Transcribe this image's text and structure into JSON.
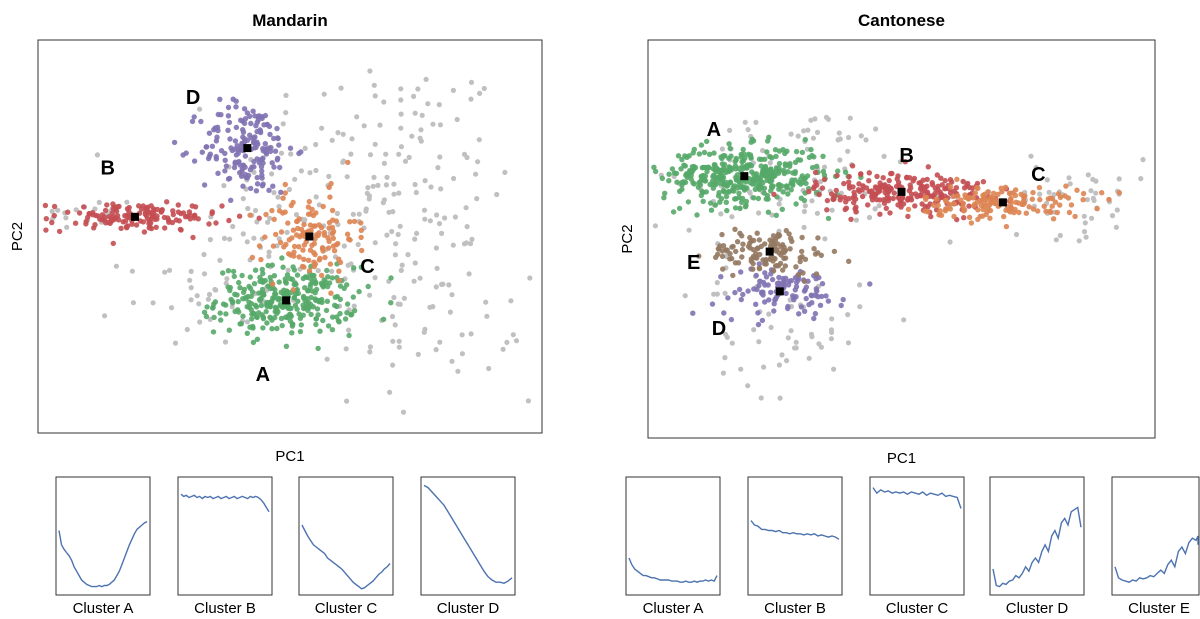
{
  "colors": {
    "A": "#55a868",
    "B": "#c44e52",
    "C": "#dd8452",
    "D": "#8172b3",
    "E": "#937860",
    "background": "#c0c0c0",
    "centroid": "#000000",
    "contour": "#4c72b0"
  },
  "chart_data": [
    {
      "type": "scatter",
      "title": "Mandarin",
      "xlabel": "PC1",
      "ylabel": "PC2",
      "grid": false,
      "clusters": [
        {
          "label": "A",
          "cx": 0.2,
          "cy": -0.65,
          "sx": 0.45,
          "sy": 0.17,
          "n": 300,
          "label_x": -0.1,
          "label_y": -1.4
        },
        {
          "label": "B",
          "cx": -1.75,
          "cy": 0.2,
          "sx": 0.55,
          "sy": 0.07,
          "n": 150,
          "label_x": -2.1,
          "label_y": 0.7
        },
        {
          "label": "C",
          "cx": 0.5,
          "cy": 0.0,
          "sx": 0.3,
          "sy": 0.22,
          "n": 130,
          "label_x": 1.25,
          "label_y": -0.3
        },
        {
          "label": "D",
          "cx": -0.3,
          "cy": 0.9,
          "sx": 0.3,
          "sy": 0.24,
          "n": 170,
          "label_x": -1.0,
          "label_y": 1.42
        }
      ],
      "xlim": [
        -3,
        3.5
      ],
      "ylim": [
        -2.0,
        2.0
      ]
    },
    {
      "type": "scatter",
      "title": "Cantonese",
      "xlabel": "PC1",
      "ylabel": "PC2",
      "grid": false,
      "clusters": [
        {
          "label": "A",
          "cx": -1.55,
          "cy": 0.6,
          "sx": 0.4,
          "sy": 0.14,
          "n": 380,
          "label_x": -1.85,
          "label_y": 1.05
        },
        {
          "label": "B",
          "cx": 0.0,
          "cy": 0.45,
          "sx": 0.42,
          "sy": 0.1,
          "n": 230,
          "label_x": 0.05,
          "label_y": 0.8
        },
        {
          "label": "C",
          "cx": 1.0,
          "cy": 0.35,
          "sx": 0.4,
          "sy": 0.08,
          "n": 150,
          "label_x": 1.35,
          "label_y": 0.62
        },
        {
          "label": "D",
          "cx": -1.2,
          "cy": -0.5,
          "sx": 0.32,
          "sy": 0.12,
          "n": 110,
          "label_x": -1.8,
          "label_y": -0.85
        },
        {
          "label": "E",
          "cx": -1.3,
          "cy": -0.12,
          "sx": 0.3,
          "sy": 0.11,
          "n": 120,
          "label_x": -2.05,
          "label_y": -0.22
        }
      ],
      "xlim": [
        -2.5,
        2.5
      ],
      "ylim": [
        -1.9,
        1.9
      ]
    }
  ],
  "contours": {
    "mandarin": [
      {
        "label": "Cluster A",
        "values": [
          0.55,
          0.42,
          0.38,
          0.35,
          0.32,
          0.28,
          0.22,
          0.18,
          0.14,
          0.1,
          0.08,
          0.06,
          0.05,
          0.04,
          0.04,
          0.04,
          0.05,
          0.04,
          0.05,
          0.05,
          0.06,
          0.08,
          0.1,
          0.14,
          0.18,
          0.24,
          0.3,
          0.36,
          0.42,
          0.47,
          0.52,
          0.56,
          0.58,
          0.6,
          0.62,
          0.63
        ]
      },
      {
        "label": "Cluster B",
        "values": [
          0.88,
          0.86,
          0.87,
          0.85,
          0.86,
          0.87,
          0.85,
          0.86,
          0.84,
          0.86,
          0.85,
          0.86,
          0.84,
          0.85,
          0.86,
          0.84,
          0.85,
          0.86,
          0.84,
          0.85,
          0.86,
          0.84,
          0.85,
          0.86,
          0.85,
          0.84,
          0.86,
          0.85,
          0.86,
          0.85,
          0.83,
          0.8,
          0.76,
          0.72
        ]
      },
      {
        "label": "Cluster C",
        "values": [
          0.6,
          0.55,
          0.5,
          0.46,
          0.42,
          0.4,
          0.38,
          0.36,
          0.34,
          0.3,
          0.28,
          0.26,
          0.24,
          0.22,
          0.2,
          0.17,
          0.14,
          0.11,
          0.08,
          0.06,
          0.04,
          0.02,
          0.03,
          0.05,
          0.07,
          0.09,
          0.12,
          0.15,
          0.17,
          0.2,
          0.22,
          0.25
        ]
      },
      {
        "label": "Cluster D",
        "values": [
          0.96,
          0.94,
          0.9,
          0.86,
          0.82,
          0.78,
          0.72,
          0.66,
          0.6,
          0.54,
          0.48,
          0.42,
          0.36,
          0.3,
          0.24,
          0.18,
          0.13,
          0.1,
          0.08,
          0.08,
          0.07,
          0.09,
          0.12
        ]
      }
    ],
    "cantonese": [
      {
        "label": "Cluster A",
        "values": [
          0.3,
          0.24,
          0.2,
          0.18,
          0.16,
          0.14,
          0.14,
          0.13,
          0.12,
          0.12,
          0.11,
          0.1,
          0.1,
          0.1,
          0.1,
          0.09,
          0.09,
          0.09,
          0.08,
          0.08,
          0.09,
          0.08,
          0.08,
          0.09,
          0.08,
          0.09,
          0.09,
          0.1,
          0.09,
          0.1,
          0.09,
          0.14
        ]
      },
      {
        "label": "Cluster B",
        "values": [
          0.64,
          0.6,
          0.59,
          0.56,
          0.56,
          0.55,
          0.55,
          0.54,
          0.55,
          0.53,
          0.53,
          0.52,
          0.53,
          0.52,
          0.52,
          0.51,
          0.52,
          0.51,
          0.52,
          0.5,
          0.51,
          0.5,
          0.49,
          0.5,
          0.49,
          0.47
        ]
      },
      {
        "label": "Cluster C",
        "values": [
          0.94,
          0.89,
          0.92,
          0.9,
          0.91,
          0.89,
          0.9,
          0.89,
          0.9,
          0.88,
          0.9,
          0.89,
          0.88,
          0.9,
          0.87,
          0.89,
          0.88,
          0.87,
          0.89,
          0.86,
          0.87,
          0.86,
          0.85,
          0.75
        ]
      },
      {
        "label": "Cluster D",
        "values": [
          0.2,
          0.05,
          0.04,
          0.07,
          0.06,
          0.09,
          0.1,
          0.14,
          0.12,
          0.16,
          0.22,
          0.18,
          0.26,
          0.3,
          0.26,
          0.36,
          0.42,
          0.36,
          0.5,
          0.55,
          0.48,
          0.62,
          0.66,
          0.6,
          0.72,
          0.74,
          0.76,
          0.58
        ]
      },
      {
        "label": "Cluster E",
        "values": [
          0.22,
          0.12,
          0.1,
          0.09,
          0.08,
          0.1,
          0.09,
          0.12,
          0.11,
          0.12,
          0.14,
          0.13,
          0.16,
          0.19,
          0.16,
          0.24,
          0.28,
          0.22,
          0.36,
          0.4,
          0.34,
          0.44,
          0.48,
          0.46,
          0.5,
          0.42
        ]
      }
    ]
  }
}
